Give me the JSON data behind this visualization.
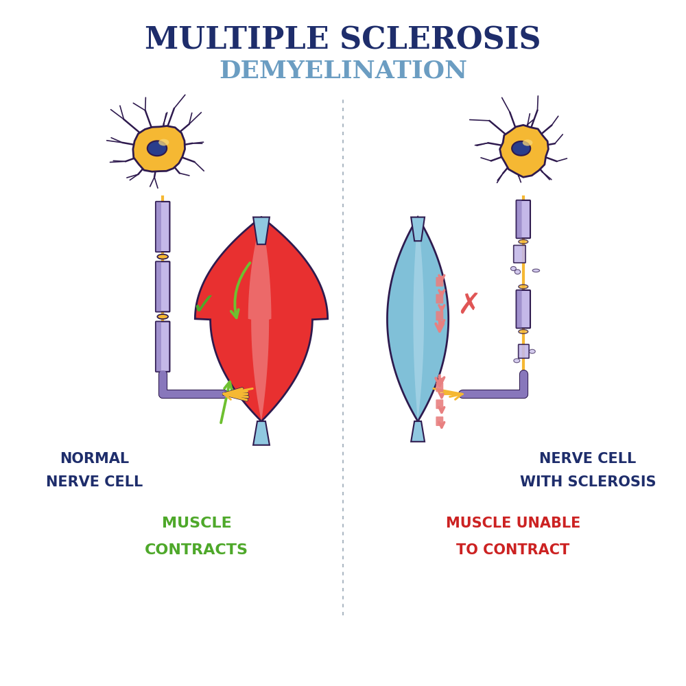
{
  "title1": "MULTIPLE SCLEROSIS",
  "title2": "DEMYELINATION",
  "title1_color": "#1e2d6b",
  "title2_color": "#6b9dc2",
  "left_label1": "NORMAL",
  "left_label2": "NERVE CELL",
  "right_label1": "NERVE CELL",
  "right_label2": "WITH SCLEROSIS",
  "left_sublabel1": "MUSCLE",
  "left_sublabel2": "CONTRACTS",
  "right_sublabel1": "MUSCLE UNABLE",
  "right_sublabel2": "TO CONTRACT",
  "label_color": "#1e2d6b",
  "left_sub_color": "#4ea82a",
  "right_sub_color": "#cc2222",
  "neuron_fill": "#f5b833",
  "neuron_outline": "#2e1a4e",
  "neuron_highlight": "#f8d878",
  "nucleus_fill": "#2a3e8c",
  "myelin_dark": "#8877bb",
  "myelin_light": "#c4b8e8",
  "myelin_mid": "#a090cc",
  "node_color": "#f5b833",
  "axon_color": "#f5b833",
  "terminal_color": "#8877bb",
  "fiber_color": "#f5b833",
  "muscle_red_dark": "#cc2020",
  "muscle_red_mid": "#e83030",
  "muscle_red_light": "#f09090",
  "muscle_blue_dark": "#5aa0c0",
  "muscle_blue_mid": "#80c0d8",
  "muscle_blue_light": "#b8dded",
  "tendon_color": "#90c8e0",
  "tendon_outline": "#2e1a4e",
  "check_color": "#4ea82a",
  "cross_color": "#e05555",
  "arrow_green": "#6ec030",
  "arrow_pink": "#e88080",
  "divider_color": "#8899aa",
  "bg": "#ffffff"
}
